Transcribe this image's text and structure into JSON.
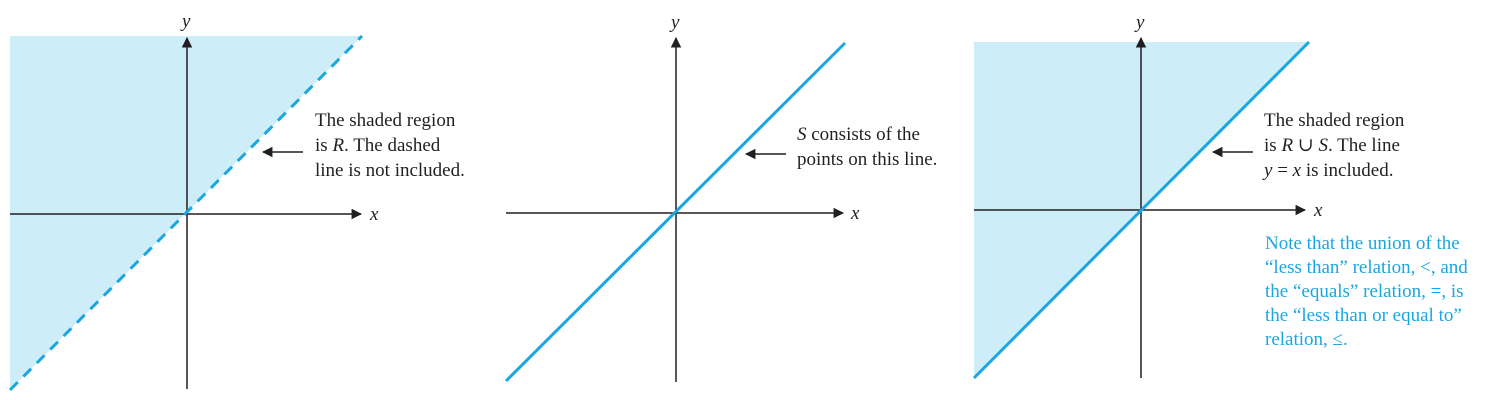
{
  "colors": {
    "region_fill": "#cdeef8",
    "line": "#1aa6e0",
    "axis": "#231f20",
    "text": "#231f20",
    "note": "#1aa6e0"
  },
  "panels": [
    {
      "x_axis_label": "x",
      "y_axis_label": "y",
      "line_style": "dashed",
      "shaded": true,
      "annotation": [
        [
          {
            "t": "The shaded region"
          }
        ],
        [
          {
            "t": "is "
          },
          {
            "t": "R",
            "i": true
          },
          {
            "t": ". The dashed"
          }
        ],
        [
          {
            "t": "line is not included."
          }
        ]
      ]
    },
    {
      "x_axis_label": "x",
      "y_axis_label": "y",
      "line_style": "solid",
      "shaded": false,
      "annotation": [
        [
          {
            "t": "S",
            "i": true
          },
          {
            "t": " consists of the"
          }
        ],
        [
          {
            "t": "points on this line."
          }
        ]
      ]
    },
    {
      "x_axis_label": "x",
      "y_axis_label": "y",
      "line_style": "solid",
      "shaded": true,
      "annotation": [
        [
          {
            "t": "The shaded region"
          }
        ],
        [
          {
            "t": "is "
          },
          {
            "t": "R",
            "i": true
          },
          {
            "t": " ∪ "
          },
          {
            "t": "S",
            "i": true
          },
          {
            "t": ". The line"
          }
        ],
        [
          {
            "t": "y",
            "i": true
          },
          {
            "t": " = "
          },
          {
            "t": "x",
            "i": true
          },
          {
            "t": " is included."
          }
        ]
      ],
      "note": [
        "Note that the union of the",
        "“less than” relation, <, and",
        "the “equals” relation, =, is",
        "the “less than or equal to”",
        "relation, ≤."
      ]
    }
  ]
}
